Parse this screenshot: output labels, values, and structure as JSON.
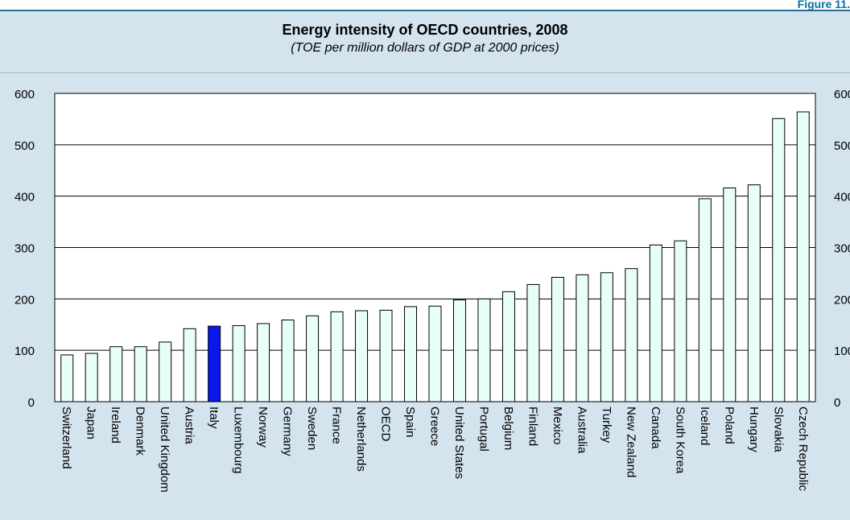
{
  "figure_label": "Figure 11.",
  "chart_data": {
    "type": "bar",
    "title": "Energy intensity of OECD countries, 2008",
    "subtitle": "(TOE per million dollars of GDP at 2000 prices)",
    "categories": [
      "Switzerland",
      "Japan",
      "Ireland",
      "Denmark",
      "United Kingdom",
      "Austria",
      "Italy",
      "Luxembourg",
      "Norway",
      "Germany",
      "Sweden",
      "France",
      "Netherlands",
      "OECD",
      "Spain",
      "Greece",
      "United States",
      "Portugal",
      "Belgium",
      "Finland",
      "Mexico",
      "Australia",
      "Turkey",
      "New Zealand",
      "Canada",
      "South Korea",
      "Iceland",
      "Poland",
      "Hungary",
      "Slovakia",
      "Czech Republic"
    ],
    "values": [
      91,
      94,
      107,
      107,
      116,
      142,
      147,
      148,
      152,
      159,
      167,
      175,
      177,
      178,
      185,
      186,
      198,
      200,
      214,
      228,
      242,
      247,
      251,
      259,
      305,
      313,
      395,
      416,
      422,
      551,
      564
    ],
    "highlight": "Italy",
    "ylim": [
      0,
      600
    ],
    "yticks": [
      0,
      100,
      200,
      300,
      400,
      500,
      600
    ],
    "xlabel": "",
    "ylabel": "",
    "grid": true,
    "colors": {
      "bar": "#e8fff8",
      "highlight": "#0a16ee",
      "bar_stroke": "#000000",
      "background": "#d3e4ee",
      "plot_bg": "#ffffff"
    }
  }
}
